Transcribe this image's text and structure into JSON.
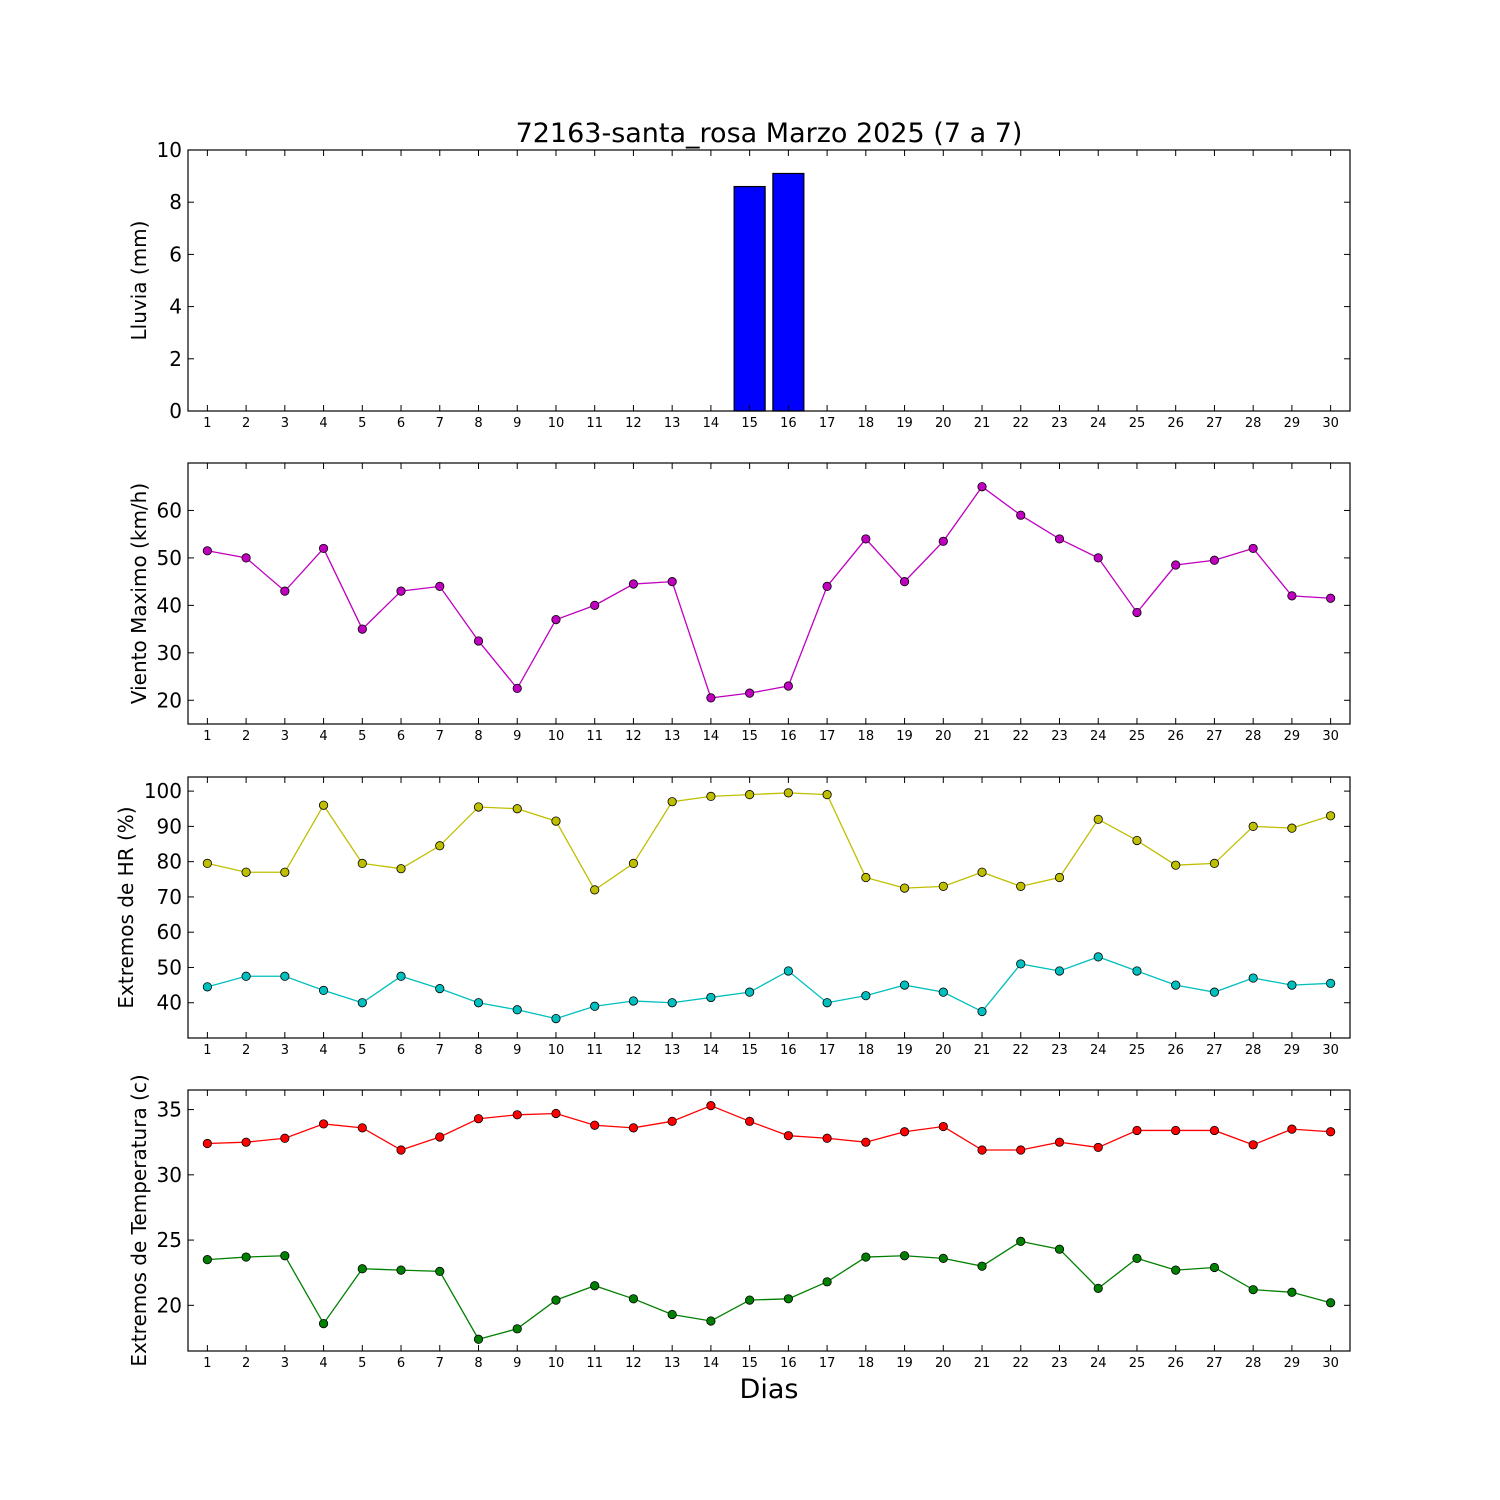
{
  "chart_data": [
    {
      "type": "bar",
      "title": "72163-santa_rosa Marzo 2025  (7 a 7)",
      "xlabel": "",
      "ylabel": "Lluvia (mm)",
      "x": [
        1,
        2,
        3,
        4,
        5,
        6,
        7,
        8,
        9,
        10,
        11,
        12,
        13,
        14,
        15,
        16,
        17,
        18,
        19,
        20,
        21,
        22,
        23,
        24,
        25,
        26,
        27,
        28,
        29,
        30
      ],
      "xlim": [
        0.5,
        30.5
      ],
      "ylim": [
        0,
        10
      ],
      "yticks": [
        0,
        2,
        4,
        6,
        8,
        10
      ],
      "grid": false,
      "series": [
        {
          "color": "#0000ff",
          "values": [
            0,
            0,
            0,
            0,
            0,
            0,
            0,
            0,
            0,
            0,
            0,
            0,
            0,
            0,
            8.6,
            9.1,
            0,
            0,
            0,
            0,
            0,
            0,
            0,
            0,
            0,
            0,
            0,
            0,
            0,
            0
          ]
        }
      ]
    },
    {
      "type": "line",
      "title": "",
      "xlabel": "",
      "ylabel": "Viento Maximo (km/h)",
      "x": [
        1,
        2,
        3,
        4,
        5,
        6,
        7,
        8,
        9,
        10,
        11,
        12,
        13,
        14,
        15,
        16,
        17,
        18,
        19,
        20,
        21,
        22,
        23,
        24,
        25,
        26,
        27,
        28,
        29,
        30
      ],
      "xlim": [
        0.5,
        30.5
      ],
      "ylim": [
        15,
        70
      ],
      "yticks": [
        20,
        30,
        40,
        50,
        60
      ],
      "grid": false,
      "series": [
        {
          "color": "#bf00bf",
          "values": [
            51.5,
            50,
            43,
            52,
            35,
            43,
            44,
            32.5,
            22.5,
            37,
            40,
            44.5,
            45,
            20.5,
            21.5,
            23,
            44,
            54,
            45,
            53.5,
            65,
            59,
            54,
            50,
            38.5,
            48.5,
            49.5,
            52,
            42,
            41.5
          ]
        }
      ]
    },
    {
      "type": "line",
      "title": "",
      "xlabel": "",
      "ylabel": "Extremos de HR (%)",
      "x": [
        1,
        2,
        3,
        4,
        5,
        6,
        7,
        8,
        9,
        10,
        11,
        12,
        13,
        14,
        15,
        16,
        17,
        18,
        19,
        20,
        21,
        22,
        23,
        24,
        25,
        26,
        27,
        28,
        29,
        30
      ],
      "xlim": [
        0.5,
        30.5
      ],
      "ylim": [
        30,
        104
      ],
      "yticks": [
        40,
        50,
        60,
        70,
        80,
        90,
        100
      ],
      "grid": false,
      "series": [
        {
          "color": "#bfbf00",
          "values": [
            79.5,
            77,
            77,
            96,
            79.5,
            78,
            84.5,
            95.5,
            95,
            91.5,
            72,
            79.5,
            97,
            98.5,
            99,
            99.5,
            99,
            75.5,
            72.5,
            73,
            77,
            73,
            75.5,
            92,
            86,
            79,
            79.5,
            90,
            89.5,
            93
          ]
        },
        {
          "color": "#00bfbf",
          "values": [
            44.5,
            47.5,
            47.5,
            43.5,
            40,
            47.5,
            44,
            40,
            38,
            35.5,
            39,
            40.5,
            40,
            41.5,
            43,
            49,
            40,
            42,
            45,
            43,
            37.5,
            51,
            49,
            53,
            49,
            45,
            43,
            47,
            45,
            45.5
          ]
        }
      ]
    },
    {
      "type": "line",
      "title": "",
      "xlabel": "Dias",
      "ylabel": "Extremos de Temperatura (c)",
      "x": [
        1,
        2,
        3,
        4,
        5,
        6,
        7,
        8,
        9,
        10,
        11,
        12,
        13,
        14,
        15,
        16,
        17,
        18,
        19,
        20,
        21,
        22,
        23,
        24,
        25,
        26,
        27,
        28,
        29,
        30
      ],
      "xlim": [
        0.5,
        30.5
      ],
      "ylim": [
        16.5,
        36.5
      ],
      "yticks": [
        20,
        25,
        30,
        35
      ],
      "grid": false,
      "series": [
        {
          "color": "#ff0000",
          "values": [
            32.4,
            32.5,
            32.8,
            33.9,
            33.6,
            31.9,
            32.9,
            34.3,
            34.6,
            34.7,
            33.8,
            33.6,
            34.1,
            35.3,
            34.1,
            33.0,
            32.8,
            32.5,
            33.3,
            33.7,
            31.9,
            31.9,
            32.5,
            32.1,
            33.4,
            33.4,
            33.4,
            32.3,
            33.5,
            33.3
          ]
        },
        {
          "color": "#008000",
          "values": [
            23.5,
            23.7,
            23.8,
            18.6,
            22.8,
            22.7,
            22.6,
            17.4,
            18.2,
            20.4,
            21.5,
            20.5,
            19.3,
            18.8,
            20.4,
            20.5,
            21.8,
            23.7,
            23.8,
            23.6,
            23.0,
            24.9,
            24.3,
            21.3,
            23.6,
            22.7,
            22.9,
            21.2,
            21.0,
            20.2
          ]
        }
      ]
    }
  ]
}
